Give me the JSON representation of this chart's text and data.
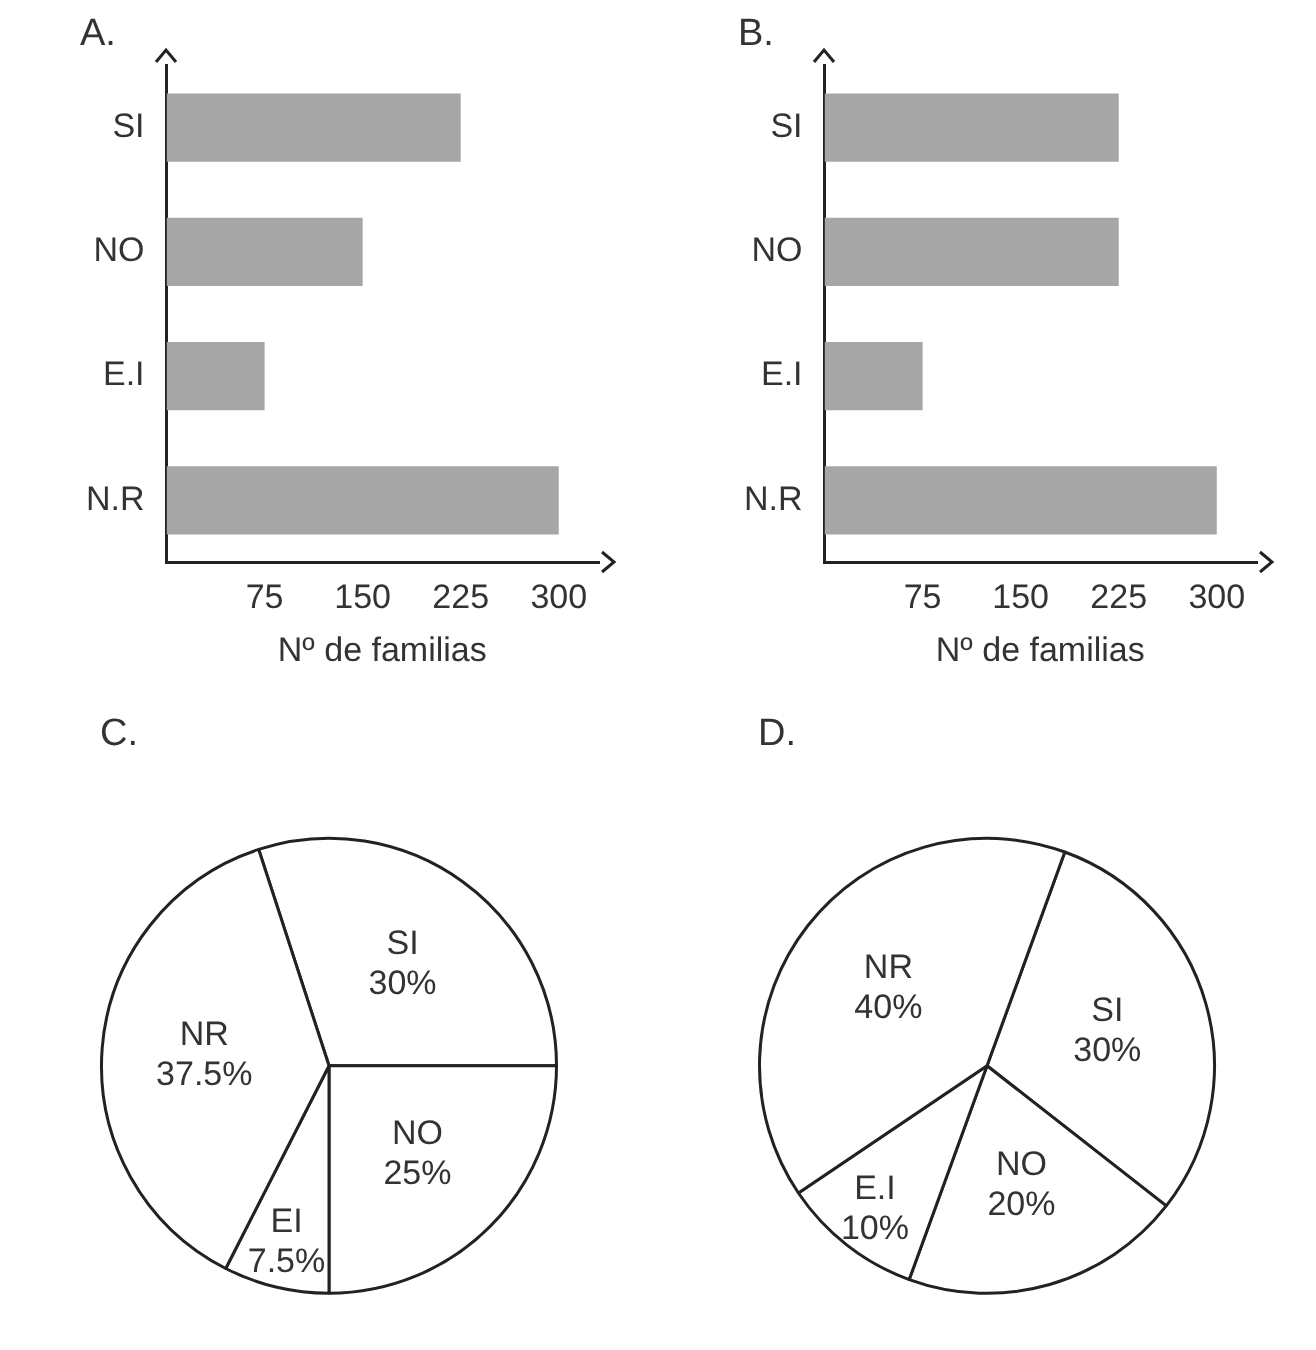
{
  "chart_data": [
    {
      "type": "bar",
      "title": "A.",
      "orientation": "horizontal",
      "categories": [
        "SI",
        "NO",
        "E.I",
        "N.R"
      ],
      "values": [
        225,
        150,
        75,
        300
      ],
      "color": "#a6a6a6",
      "xlabel": "Nº de familias",
      "xlim": [
        0,
        330
      ],
      "xticks": [
        75,
        150,
        225,
        300
      ]
    },
    {
      "type": "bar",
      "title": "B.",
      "orientation": "horizontal",
      "categories": [
        "SI",
        "NO",
        "E.I",
        "N.R"
      ],
      "values": [
        225,
        225,
        75,
        300
      ],
      "color": "#a6a6a6",
      "xlabel": "Nº de familias",
      "xlim": [
        0,
        330
      ],
      "xticks": [
        75,
        150,
        225,
        300
      ]
    },
    {
      "type": "pie",
      "title": "C.",
      "categories": [
        "SI",
        "NO",
        "EI",
        "NR"
      ],
      "values": [
        30,
        25,
        7.5,
        37.5
      ],
      "colors": [
        "#ffffff",
        "#ffffff",
        "#ffffff",
        "#ffffff"
      ],
      "value_labels": [
        "30%",
        "25%",
        "7.5%",
        "37.5%"
      ]
    },
    {
      "type": "pie",
      "title": "D.",
      "categories": [
        "SI",
        "NO",
        "E.I",
        "NR"
      ],
      "values": [
        30,
        20,
        10,
        40
      ],
      "colors": [
        "#ffffff",
        "#ffffff",
        "#ffffff",
        "#ffffff"
      ],
      "value_labels": [
        "30%",
        "20%",
        "10%",
        "40%"
      ]
    }
  ]
}
